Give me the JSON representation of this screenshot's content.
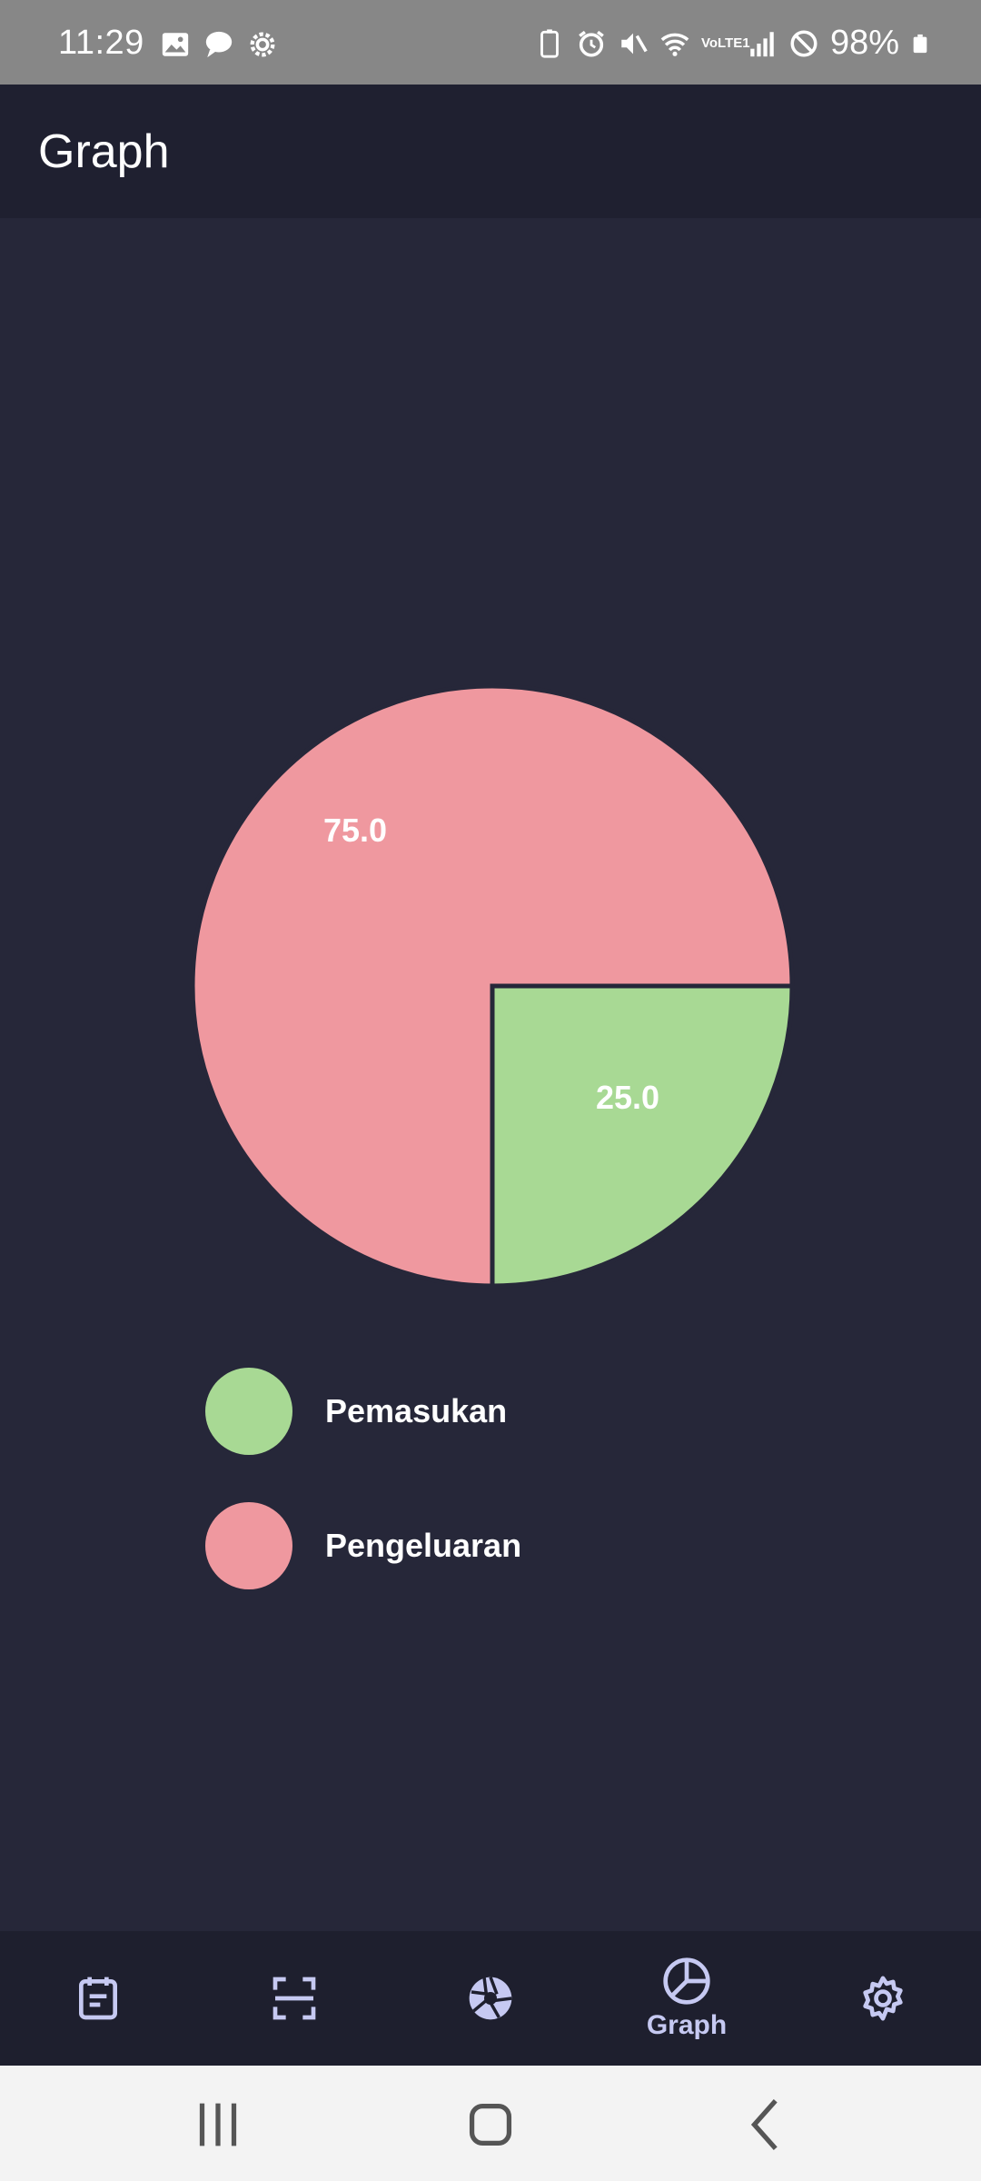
{
  "status_bar": {
    "time": "11:29",
    "battery_percent": "98%",
    "left_icons": [
      "image-icon",
      "chat-bubble-icon",
      "settings-gear-icon"
    ],
    "right_icons": [
      "battery-saver-icon",
      "alarm-icon",
      "mute-icon",
      "wifi-icon",
      "volte-icon",
      "signal-icon",
      "do-not-disturb-icon",
      "battery-icon"
    ],
    "volte_text": "VoLTE1"
  },
  "app_bar": {
    "title": "Graph"
  },
  "chart_data": {
    "type": "pie",
    "slices": [
      {
        "name": "Pemasukan",
        "value": 25.0,
        "label": "25.0",
        "color": "#a8d994"
      },
      {
        "name": "Pengeluaran",
        "value": 75.0,
        "label": "75.0",
        "color": "#ef989f"
      }
    ],
    "legend_position": "bottom"
  },
  "legend": {
    "items": [
      {
        "label": "Pemasukan",
        "color": "#a8d994"
      },
      {
        "label": "Pengeluaran",
        "color": "#ef989f"
      }
    ]
  },
  "bottom_nav": {
    "items": [
      {
        "icon": "notes-icon",
        "label": ""
      },
      {
        "icon": "scan-icon",
        "label": ""
      },
      {
        "icon": "camera-aperture-icon",
        "label": ""
      },
      {
        "icon": "pie-chart-icon",
        "label": "Graph",
        "active": true
      },
      {
        "icon": "settings-icon",
        "label": ""
      }
    ]
  },
  "colors": {
    "background": "#262739",
    "app_bar": "#1f2030",
    "nav_icon": "#c6c9f2",
    "status_bar": "#878787"
  }
}
